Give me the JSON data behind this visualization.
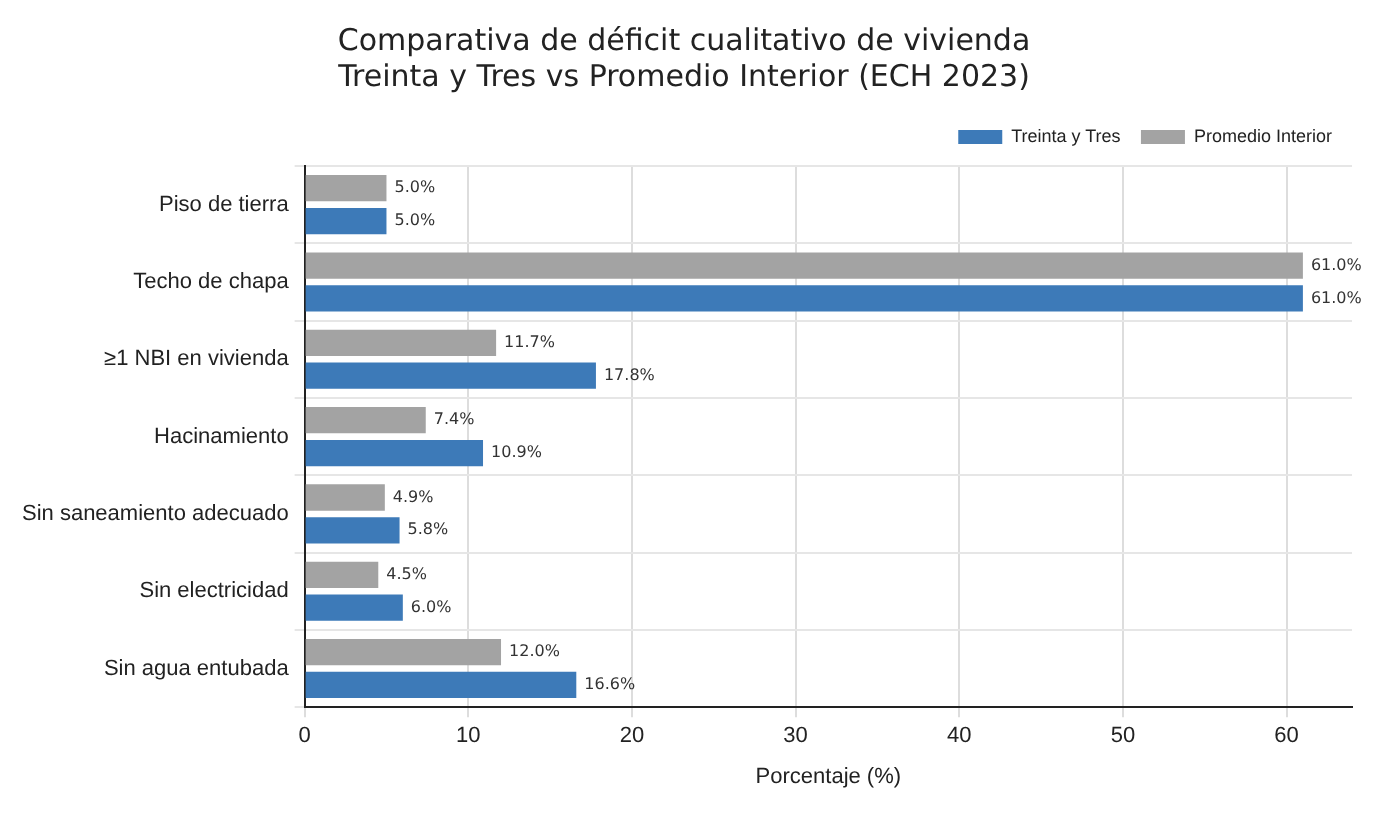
{
  "chart_data": {
    "type": "bar",
    "orientation": "horizontal",
    "title": "Comparativa de déficit cualitativo de vivienda\nTreinta y Tres vs Promedio Interior (ECH 2023)",
    "xlabel": "Porcentaje (%)",
    "categories": [
      "Piso de tierra",
      "Techo de chapa",
      "≥1 NBI en vivienda",
      "Hacinamiento",
      "Sin saneamiento adecuado",
      "Sin electricidad",
      "Sin agua entubada"
    ],
    "series": [
      {
        "name": "Treinta y Tres",
        "color": "#3d7ab8",
        "values": [
          5.0,
          61.0,
          17.8,
          10.9,
          5.8,
          6.0,
          16.6
        ],
        "value_labels": [
          "5.0%",
          "61.0%",
          "17.8%",
          "10.9%",
          "5.8%",
          "6.0%",
          "16.6%"
        ]
      },
      {
        "name": "Promedio Interior",
        "color": "#a3a3a3",
        "values": [
          5.0,
          61.0,
          11.7,
          7.4,
          4.9,
          4.5,
          12.0
        ],
        "value_labels": [
          "5.0%",
          "61.0%",
          "11.7%",
          "7.4%",
          "4.9%",
          "4.5%",
          "12.0%"
        ]
      }
    ],
    "xlim": [
      0,
      64
    ],
    "xticks": [
      0,
      10,
      20,
      30,
      40,
      50,
      60
    ],
    "grid": true,
    "legend": "top right"
  }
}
